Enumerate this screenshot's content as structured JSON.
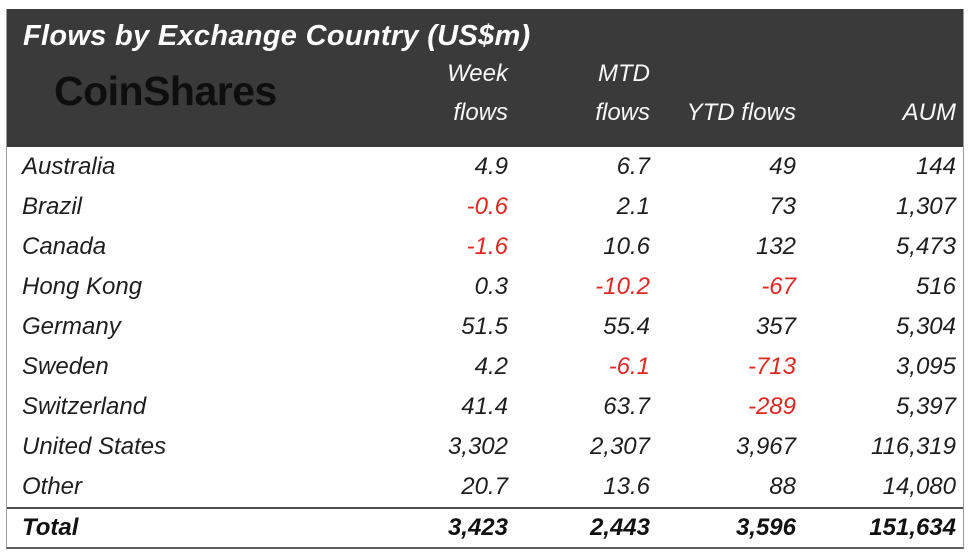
{
  "table": {
    "title": "Flows by Exchange Country (US$m)",
    "brand": "CoinShares",
    "columns": [
      {
        "line1": "Week",
        "line2": "flows"
      },
      {
        "line1": "MTD",
        "line2": "flows"
      },
      {
        "line1": "",
        "line2": "YTD flows"
      },
      {
        "line1": "",
        "line2": "AUM"
      }
    ],
    "rows": [
      {
        "country": "Australia",
        "week": "4.9",
        "mtd": "6.7",
        "ytd": "49",
        "aum": "144"
      },
      {
        "country": "Brazil",
        "week": "-0.6",
        "mtd": "2.1",
        "ytd": "73",
        "aum": "1,307"
      },
      {
        "country": "Canada",
        "week": "-1.6",
        "mtd": "10.6",
        "ytd": "132",
        "aum": "5,473"
      },
      {
        "country": "Hong Kong",
        "week": "0.3",
        "mtd": "-10.2",
        "ytd": "-67",
        "aum": "516"
      },
      {
        "country": "Germany",
        "week": "51.5",
        "mtd": "55.4",
        "ytd": "357",
        "aum": "5,304"
      },
      {
        "country": "Sweden",
        "week": "4.2",
        "mtd": "-6.1",
        "ytd": "-713",
        "aum": "3,095"
      },
      {
        "country": "Switzerland",
        "week": "41.4",
        "mtd": "63.7",
        "ytd": "-289",
        "aum": "5,397"
      },
      {
        "country": "United States",
        "week": "3,302",
        "mtd": "2,307",
        "ytd": "3,967",
        "aum": "116,319"
      },
      {
        "country": "Other",
        "week": "20.7",
        "mtd": "13.6",
        "ytd": "88",
        "aum": "14,080"
      }
    ],
    "total": {
      "label": "Total",
      "week": "3,423",
      "mtd": "2,443",
      "ytd": "3,596",
      "aum": "151,634"
    }
  },
  "colors": {
    "header_bg": "#3a3a3a",
    "header_text": "#fdfdfd",
    "brand_text": "#0e0e0e",
    "body_text": "#1e1e1e",
    "negative": "#df2824"
  },
  "chart_data": {
    "type": "table",
    "title": "Flows by Exchange Country (US$m)",
    "columns": [
      "Week flows",
      "MTD flows",
      "YTD flows",
      "AUM"
    ],
    "rows": [
      {
        "country": "Australia",
        "week_flows": 4.9,
        "mtd_flows": 6.7,
        "ytd_flows": 49,
        "aum": 144
      },
      {
        "country": "Brazil",
        "week_flows": -0.6,
        "mtd_flows": 2.1,
        "ytd_flows": 73,
        "aum": 1307
      },
      {
        "country": "Canada",
        "week_flows": -1.6,
        "mtd_flows": 10.6,
        "ytd_flows": 132,
        "aum": 5473
      },
      {
        "country": "Hong Kong",
        "week_flows": 0.3,
        "mtd_flows": -10.2,
        "ytd_flows": -67,
        "aum": 516
      },
      {
        "country": "Germany",
        "week_flows": 51.5,
        "mtd_flows": 55.4,
        "ytd_flows": 357,
        "aum": 5304
      },
      {
        "country": "Sweden",
        "week_flows": 4.2,
        "mtd_flows": -6.1,
        "ytd_flows": -713,
        "aum": 3095
      },
      {
        "country": "Switzerland",
        "week_flows": 41.4,
        "mtd_flows": 63.7,
        "ytd_flows": -289,
        "aum": 5397
      },
      {
        "country": "United States",
        "week_flows": 3302,
        "mtd_flows": 2307,
        "ytd_flows": 3967,
        "aum": 116319
      },
      {
        "country": "Other",
        "week_flows": 20.7,
        "mtd_flows": 13.6,
        "ytd_flows": 88,
        "aum": 14080
      }
    ],
    "total": {
      "week_flows": 3423,
      "mtd_flows": 2443,
      "ytd_flows": 3596,
      "aum": 151634
    },
    "notes": "Negative values rendered in red"
  }
}
